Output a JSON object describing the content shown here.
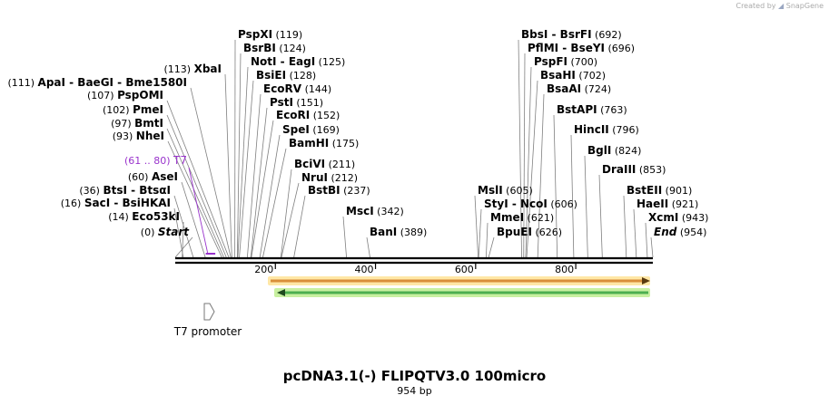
{
  "credit": "Created by",
  "credit_brand": "SnapGene",
  "title": "pcDNA3.1(-) FLIPQTV3.0 100micro",
  "length_label": "954 bp",
  "sequence_length": 954,
  "colors": {
    "backbone": "#000000",
    "feature_label": "#9933cc",
    "forward_arrow_fill": "#d98e3a",
    "forward_arrow_outline": "#ffe7a6",
    "reverse_arrow_fill": "#4caf50",
    "reverse_arrow_outline": "#c8f0a0",
    "leader_line": "#808080"
  },
  "ticks": [
    "200",
    "400",
    "600",
    "800"
  ],
  "features": [
    {
      "id": "t7",
      "name": "T7",
      "range": "(61 .. 80)",
      "start": 61,
      "end": 80
    }
  ],
  "annotations": [
    {
      "name": "T7 promoter",
      "start": 1,
      "end": 19,
      "direction": "forward"
    }
  ],
  "sites": [
    {
      "group": "left",
      "name": "Start",
      "pos": "(0)",
      "italic": true
    },
    {
      "group": "left",
      "name": "Eco53kI",
      "pos": "(14)"
    },
    {
      "group": "left",
      "name": "SacI  -  BsiHKAI",
      "pos": "(16)"
    },
    {
      "group": "left",
      "name": "BtsI  -  BtsαI",
      "pos": "(36)"
    },
    {
      "group": "left",
      "name": "AseI",
      "pos": "(60)"
    },
    {
      "group": "left",
      "name": "NheI",
      "pos": "(93)"
    },
    {
      "group": "left",
      "name": "BmtI",
      "pos": "(97)"
    },
    {
      "group": "left",
      "name": "PmeI",
      "pos": "(102)"
    },
    {
      "group": "left",
      "name": "PspOMI",
      "pos": "(107)"
    },
    {
      "group": "left",
      "name": "ApaI  -  BaeGI  -  Bme1580I",
      "pos": "(111)"
    },
    {
      "group": "left",
      "name": "XbaI",
      "pos": "(113)"
    },
    {
      "group": "mid",
      "name": "PspXI",
      "pos": "(119)"
    },
    {
      "group": "mid",
      "name": "BsrBI",
      "pos": "(124)"
    },
    {
      "group": "mid",
      "name": "NotI  -  EagI",
      "pos": "(125)"
    },
    {
      "group": "mid",
      "name": "BsiEI",
      "pos": "(128)"
    },
    {
      "group": "mid",
      "name": "EcoRV",
      "pos": "(144)"
    },
    {
      "group": "mid",
      "name": "PstI",
      "pos": "(151)"
    },
    {
      "group": "mid",
      "name": "EcoRI",
      "pos": "(152)"
    },
    {
      "group": "mid",
      "name": "SpeI",
      "pos": "(169)"
    },
    {
      "group": "mid",
      "name": "BamHI",
      "pos": "(175)"
    },
    {
      "group": "mid",
      "name": "BciVI",
      "pos": "(211)"
    },
    {
      "group": "mid",
      "name": "NruI",
      "pos": "(212)"
    },
    {
      "group": "mid",
      "name": "BstBI",
      "pos": "(237)"
    },
    {
      "group": "mid",
      "name": "MscI",
      "pos": "(342)"
    },
    {
      "group": "mid",
      "name": "BanI",
      "pos": "(389)"
    },
    {
      "group": "right",
      "name": "BbsI  -  BsrFI",
      "pos": "(692)"
    },
    {
      "group": "right",
      "name": "PflMI  -  BseYI",
      "pos": "(696)"
    },
    {
      "group": "right",
      "name": "PspFI",
      "pos": "(700)"
    },
    {
      "group": "right",
      "name": "BsaHI",
      "pos": "(702)"
    },
    {
      "group": "right",
      "name": "BsaAI",
      "pos": "(724)"
    },
    {
      "group": "right",
      "name": "BstAPI",
      "pos": "(763)"
    },
    {
      "group": "right",
      "name": "HincII",
      "pos": "(796)"
    },
    {
      "group": "right",
      "name": "BglI",
      "pos": "(824)"
    },
    {
      "group": "right",
      "name": "DraIII",
      "pos": "(853)"
    },
    {
      "group": "right",
      "name": "BstEII",
      "pos": "(901)"
    },
    {
      "group": "right",
      "name": "HaeII",
      "pos": "(921)"
    },
    {
      "group": "right",
      "name": "XcmI",
      "pos": "(943)"
    },
    {
      "group": "right",
      "name": "End",
      "pos": "(954)",
      "italic": true
    },
    {
      "group": "low",
      "name": "MslI",
      "pos": "(605)"
    },
    {
      "group": "low",
      "name": "StyI  -  NcoI",
      "pos": "(606)"
    },
    {
      "group": "low",
      "name": "MmeI",
      "pos": "(621)"
    },
    {
      "group": "low",
      "name": "BpuEI",
      "pos": "(626)"
    }
  ]
}
